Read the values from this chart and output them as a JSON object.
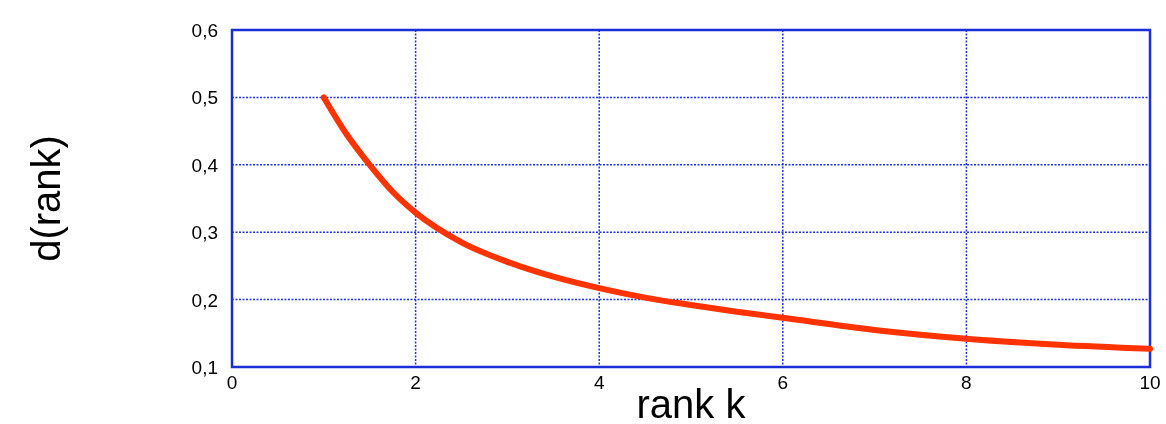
{
  "chart_data": {
    "type": "line",
    "xlabel": "rank k",
    "ylabel": "d(rank)",
    "xlim": [
      0,
      10
    ],
    "xticks": [
      0,
      2,
      4,
      6,
      8,
      10
    ],
    "ylim": [
      0.1,
      0.6
    ],
    "yticks": [
      {
        "value": 0.1,
        "label": "0,1"
      },
      {
        "value": 0.2,
        "label": "0,2"
      },
      {
        "value": 0.3,
        "label": "0,3"
      },
      {
        "value": 0.4,
        "label": "0,4"
      },
      {
        "value": 0.5,
        "label": "0,5"
      },
      {
        "value": 0.6,
        "label": "0,6"
      }
    ],
    "grid": true,
    "series": [
      {
        "color": "#ff3300",
        "x": [
          1,
          1.25,
          1.5,
          1.75,
          2,
          2.5,
          3,
          3.5,
          4,
          4.5,
          5,
          5.5,
          6,
          7,
          8,
          9,
          10
        ],
        "values": [
          0.5,
          0.445,
          0.4,
          0.36,
          0.329,
          0.285,
          0.256,
          0.234,
          0.217,
          0.203,
          0.192,
          0.182,
          0.173,
          0.155,
          0.142,
          0.133,
          0.127
        ]
      }
    ]
  }
}
